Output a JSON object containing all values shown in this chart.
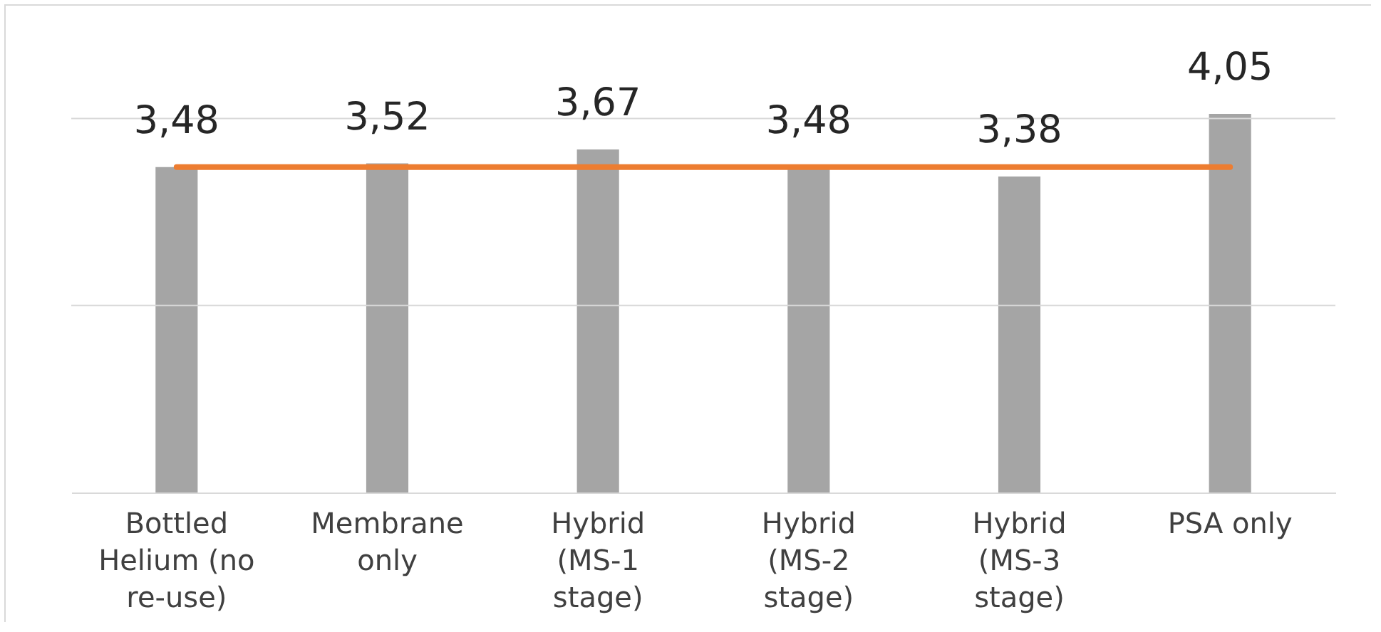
{
  "chart_data": {
    "type": "bar",
    "categories": [
      "Bottled Helium (no re-use)",
      "Membrane only",
      "Hybrid (MS-1 stage)",
      "Hybrid (MS-2 stage)",
      "Hybrid (MS-3 stage)",
      "PSA only"
    ],
    "series": [
      {
        "color": "#a5a5a5",
        "values": [
          3.48,
          3.52,
          3.67,
          3.48,
          3.38,
          4.05
        ],
        "value_labels": [
          "3,48",
          "3,52",
          "3,67",
          "3,48",
          "3,38",
          "4,05"
        ]
      },
      {
        "type": "line",
        "color": "#ed7d31",
        "values": [
          3.48,
          3.48,
          3.48,
          3.48,
          3.48,
          3.48
        ]
      }
    ],
    "ref_lines": [
      {
        "axis": "y",
        "value": 2,
        "color": "#d9d9d9"
      },
      {
        "axis": "y",
        "value": 4,
        "color": "#d9d9d9"
      }
    ],
    "tick_labels": "x"
  }
}
